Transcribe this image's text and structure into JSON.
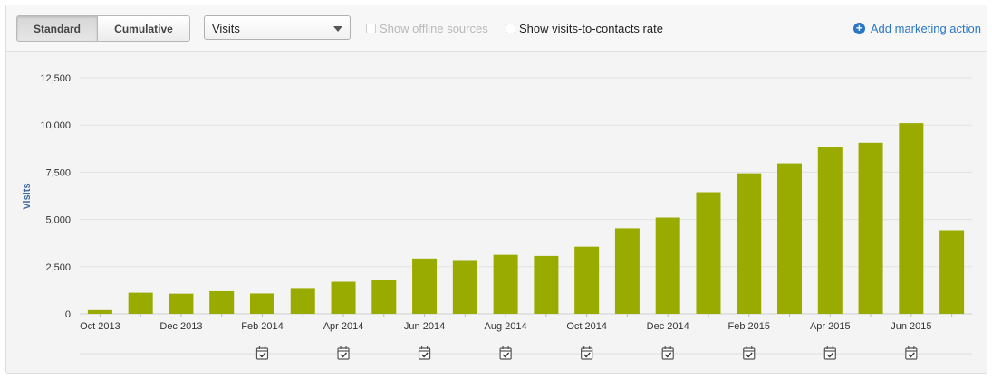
{
  "toolbar": {
    "tabs": [
      {
        "label": "Standard",
        "active": true
      },
      {
        "label": "Cumulative",
        "active": false
      }
    ],
    "metric_select": {
      "value": "Visits"
    },
    "offline_checkbox": {
      "label": "Show offline sources",
      "checked": false,
      "disabled": true
    },
    "rate_checkbox": {
      "label": "Show visits-to-contacts rate",
      "checked": false,
      "disabled": false
    },
    "add_action": {
      "label": "Add marketing action",
      "icon": "plus-circle-icon"
    }
  },
  "colors": {
    "bar": "#9aab00",
    "link": "#2a77c5",
    "ylabel": "#3c6a9c"
  },
  "chart_data": {
    "type": "bar",
    "ylabel": "Visits",
    "ylim": [
      0,
      12500
    ],
    "yticks": [
      0,
      2500,
      5000,
      7500,
      10000,
      12500
    ],
    "ytick_labels": [
      "0",
      "2,500",
      "5,000",
      "7,500",
      "10,000",
      "12,500"
    ],
    "grid": true,
    "categories": [
      "Oct 2013",
      "Nov 2013",
      "Dec 2013",
      "Jan 2014",
      "Feb 2014",
      "Mar 2014",
      "Apr 2014",
      "May 2014",
      "Jun 2014",
      "Jul 2014",
      "Aug 2014",
      "Sep 2014",
      "Oct 2014",
      "Nov 2014",
      "Dec 2014",
      "Jan 2015",
      "Feb 2015",
      "Mar 2015",
      "Apr 2015",
      "May 2015",
      "Jun 2015",
      "Jul 2015"
    ],
    "xtick_labels": [
      "Oct 2013",
      "",
      "Dec 2013",
      "",
      "Feb 2014",
      "",
      "Apr 2014",
      "",
      "Jun 2014",
      "",
      "Aug 2014",
      "",
      "Oct 2014",
      "",
      "Dec 2014",
      "",
      "Feb 2015",
      "",
      "Apr 2015",
      "",
      "Jun 2015",
      ""
    ],
    "values": [
      200,
      1120,
      1070,
      1200,
      1080,
      1370,
      1700,
      1790,
      2930,
      2850,
      3130,
      3070,
      3560,
      4530,
      5100,
      6440,
      7440,
      7970,
      8820,
      9060,
      10100,
      4430
    ],
    "marketing_action_markers": [
      4,
      6,
      8,
      10,
      12,
      14,
      16,
      18,
      20
    ]
  }
}
